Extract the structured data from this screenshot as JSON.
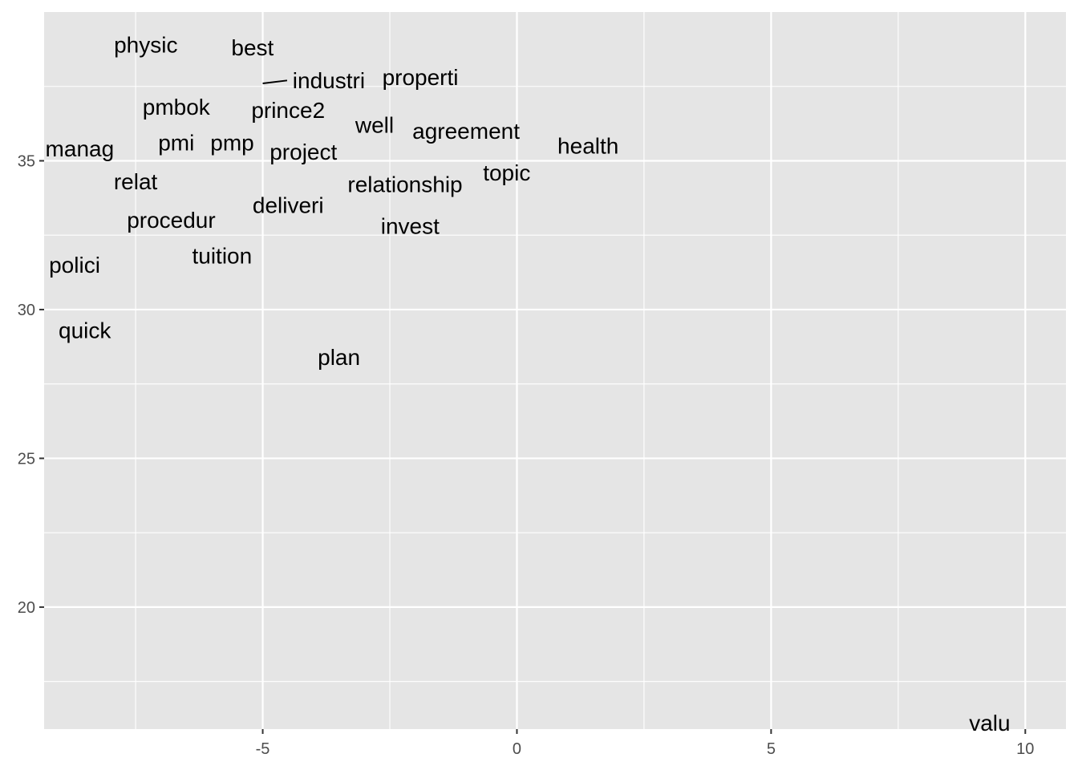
{
  "chart_data": {
    "type": "scatter",
    "title": "",
    "xlabel": "",
    "ylabel": "",
    "xlim": [
      -9.3,
      10.8
    ],
    "ylim": [
      15.9,
      40.0
    ],
    "x_ticks": [
      -5,
      0,
      5,
      10
    ],
    "x_tick_labels": [
      "-5",
      "0",
      "5",
      "10"
    ],
    "y_ticks": [
      20,
      25,
      30,
      35
    ],
    "y_tick_labels": [
      "20",
      "25",
      "30",
      "35"
    ],
    "grid": true,
    "legend": "none",
    "colors": {
      "panel": "#e5e5e5",
      "grid": "#ffffff",
      "text": "#000000",
      "axis_text": "#4d4d4d"
    },
    "points": [
      {
        "label": "physic",
        "x": -7.3,
        "y": 38.9
      },
      {
        "label": "best",
        "x": -5.2,
        "y": 38.8
      },
      {
        "label": "industri",
        "x": -3.7,
        "y": 37.7,
        "segment_to": {
          "x": -5.0,
          "y": 37.6
        }
      },
      {
        "label": "properti",
        "x": -1.9,
        "y": 37.8
      },
      {
        "label": "pmbok",
        "x": -6.7,
        "y": 36.8
      },
      {
        "label": "prince2",
        "x": -4.5,
        "y": 36.7
      },
      {
        "label": "well",
        "x": -2.8,
        "y": 36.2
      },
      {
        "label": "agreement",
        "x": -1.0,
        "y": 36.0
      },
      {
        "label": "manag",
        "x": -8.6,
        "y": 35.4
      },
      {
        "label": "pmi",
        "x": -6.7,
        "y": 35.6
      },
      {
        "label": "pmp",
        "x": -5.6,
        "y": 35.6
      },
      {
        "label": "project",
        "x": -4.2,
        "y": 35.3
      },
      {
        "label": "health",
        "x": 1.4,
        "y": 35.5
      },
      {
        "label": "relat",
        "x": -7.5,
        "y": 34.3
      },
      {
        "label": "relationship",
        "x": -2.2,
        "y": 34.2
      },
      {
        "label": "topic",
        "x": -0.2,
        "y": 34.6
      },
      {
        "label": "deliveri",
        "x": -4.5,
        "y": 33.5
      },
      {
        "label": "procedur",
        "x": -6.8,
        "y": 33.0
      },
      {
        "label": "invest",
        "x": -2.1,
        "y": 32.8
      },
      {
        "label": "tuition",
        "x": -5.8,
        "y": 31.8
      },
      {
        "label": "polici",
        "x": -8.7,
        "y": 31.5
      },
      {
        "label": "quick",
        "x": -8.5,
        "y": 29.3
      },
      {
        "label": "plan",
        "x": -3.5,
        "y": 28.4
      },
      {
        "label": "valu",
        "x": 9.3,
        "y": 16.1
      }
    ]
  }
}
